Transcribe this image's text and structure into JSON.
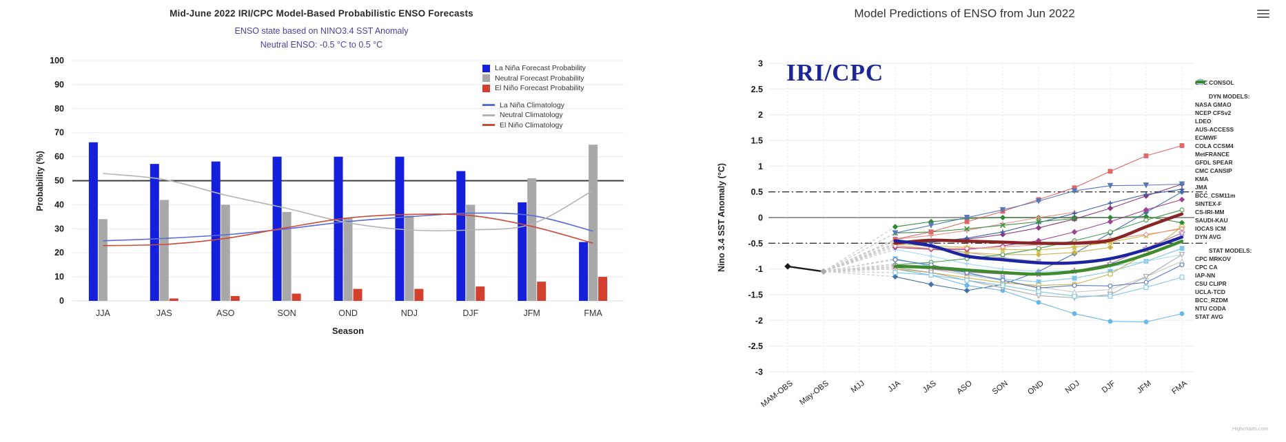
{
  "left_panel": {
    "title": "Mid-June 2022 IRI/CPC Model-Based Probabilistic ENSO Forecasts",
    "subtitle1": "ENSO state based on NINO3.4 SST Anomaly",
    "subtitle2": "Neutral ENSO: -0.5 °C to 0.5 °C"
  },
  "right_panel": {
    "title": "Model Predictions of ENSO from Jun 2022",
    "watermark": "IRI/CPC",
    "credit": "Highcharts.com",
    "menu_icon": "hamburger-icon"
  },
  "chart_data": [
    {
      "type": "bar",
      "title": "Mid-June 2022 IRI/CPC Model-Based Probabilistic ENSO Forecasts",
      "subtitles": [
        "ENSO state based on NINO3.4 SST Anomaly",
        "Neutral ENSO: -0.5 °C to 0.5 °C"
      ],
      "xlabel": "Season",
      "ylabel": "Probability (%)",
      "ylim": [
        0,
        100
      ],
      "ytick_step": 10,
      "grid": true,
      "legend_position": "top-right",
      "reference_line_y": 50,
      "reference_line_color": "#3c3c3c",
      "categories": [
        "JJA",
        "JAS",
        "ASO",
        "SON",
        "OND",
        "NDJ",
        "DJF",
        "JFM",
        "FMA"
      ],
      "bar_series": [
        {
          "name": "La Niña Forecast Probability",
          "color": "#1520dd",
          "values": [
            66,
            57,
            58,
            60,
            60,
            60,
            54,
            41,
            24.5
          ]
        },
        {
          "name": "Neutral Forecast Probability",
          "color": "#a8a8a8",
          "values": [
            34,
            42,
            40,
            37,
            34.5,
            35.5,
            40,
            51,
            65
          ]
        },
        {
          "name": "El Niño Forecast Probability",
          "color": "#d2402e",
          "values": [
            0,
            1,
            2,
            3,
            5,
            5,
            6,
            8,
            10
          ]
        }
      ],
      "line_series": [
        {
          "name": "La Niña Climatology",
          "color": "#5a6bd8",
          "values": [
            25,
            26,
            27.5,
            30,
            33,
            35,
            36.5,
            35.5,
            29
          ]
        },
        {
          "name": "Neutral Climatology",
          "color": "#b3b3b3",
          "values": [
            53,
            50.5,
            44,
            38.5,
            32.5,
            29.5,
            29.5,
            32,
            46
          ]
        },
        {
          "name": "El Niño Climatology",
          "color": "#cc4a38",
          "values": [
            23,
            23.5,
            26,
            30.5,
            34.5,
            36,
            35.5,
            31,
            24
          ]
        }
      ]
    },
    {
      "type": "line",
      "title": "Model Predictions of ENSO from Jun 2022",
      "watermark": "IRI/CPC",
      "ylabel": "Nino 3.4 SST Anomaly (°C)",
      "ylim": [
        -3,
        3
      ],
      "ytick_step": 0.5,
      "zero_line": 0,
      "dashdot_lines": [
        0.5,
        -0.5
      ],
      "categories": [
        "MAM-OBS",
        "May-OBS",
        "MJJ",
        "JJA",
        "JAS",
        "ASO",
        "SON",
        "OND",
        "NDJ",
        "DJF",
        "JFM",
        "FMA"
      ],
      "observation": {
        "name": "OBS",
        "color": "#1a1a1a",
        "values": [
          -0.95,
          -1.05
        ],
        "marker": "diamond"
      },
      "fan_color": "#cbcbcb",
      "model_start_index": 3,
      "legend_sections": [
        {
          "header": null,
          "items": [
            "CPC CONSOL"
          ]
        },
        {
          "header": "DYN MODELS:",
          "items": [
            "NASA GMAO",
            "NCEP CFSv2",
            "LDEO",
            "AUS-ACCESS",
            "ECMWF",
            "COLA CCSM4",
            "MetFRANCE",
            "GFDL SPEAR",
            "CMC CANSIP",
            "KMA",
            "JMA",
            "BCC_CSM11m",
            "SINTEX-F",
            "CS-IRI-MM",
            "SAUDI-KAU",
            "IOCAS ICM",
            "DYN AVG"
          ]
        },
        {
          "header": "STAT MODELS:",
          "items": [
            "CPC MRKOV",
            "CPC CA",
            "IAP-NN",
            "CSU CLIPR",
            "UCLA-TCD",
            "BCC_RZDM",
            "NTU CODA",
            "STAT AVG"
          ]
        }
      ],
      "series": [
        {
          "name": "CPC CONSOL",
          "color": "#1c24a0",
          "marker": "line",
          "filled": true,
          "thick": true,
          "values": [
            -0.45,
            -0.55,
            -0.75,
            -0.82,
            -0.88,
            -0.88,
            -0.8,
            -0.62,
            -0.38
          ]
        },
        {
          "name": "NASA GMAO",
          "color": "#4472a8",
          "marker": "diamond",
          "filled": true,
          "values": [
            -1.15,
            -1.3,
            -1.42,
            -1.3,
            -1.05,
            -0.7,
            -0.3,
            0.1,
            0.5
          ]
        },
        {
          "name": "NCEP CFSv2",
          "color": "#7fc6e8",
          "marker": "square",
          "filled": true,
          "values": [
            -0.8,
            -0.95,
            -1.1,
            -1.2,
            -1.25,
            -1.18,
            -1.05,
            -0.85,
            -0.6
          ]
        },
        {
          "name": "LDEO",
          "color": "#2e8b33",
          "marker": "diamond",
          "filled": true,
          "values": [
            -0.18,
            -0.08,
            -0.02,
            0,
            0,
            0,
            0,
            0.02,
            -0.1
          ]
        },
        {
          "name": "AUS-ACCESS",
          "color": "#cfc04f",
          "marker": "star",
          "filled": true,
          "values": [
            -0.52,
            -0.55,
            -0.58,
            -0.62,
            -0.63,
            -0.58,
            -0.48,
            -0.35,
            -0.2
          ]
        },
        {
          "name": "ECMWF",
          "color": "#ef8b8b",
          "marker": "plus",
          "filled": true,
          "values": [
            -0.42,
            -0.35,
            -0.25,
            -0.12,
            0,
            0.1
          ]
        },
        {
          "name": "COLA CCSM4",
          "color": "#8b3a80",
          "marker": "diamond",
          "filled": true,
          "values": [
            -0.45,
            -0.48,
            -0.42,
            -0.33,
            -0.2,
            -0.03,
            0.18,
            0.42,
            0.65
          ]
        },
        {
          "name": "MetFRANCE",
          "color": "#b8b8b8",
          "marker": "square",
          "filled": true,
          "values": [
            -0.42,
            -0.55,
            -0.68,
            -0.78,
            -0.85
          ]
        },
        {
          "name": "GFDL SPEAR",
          "color": "#3c5fa8",
          "marker": "plus",
          "filled": true,
          "values": [
            -0.5,
            -0.48,
            -0.4,
            -0.28,
            -0.1,
            0.08,
            0.28,
            0.45,
            0.55
          ]
        },
        {
          "name": "CMC CANSIP",
          "color": "#a5d8f0",
          "marker": "plus",
          "filled": true,
          "values": [
            -0.62,
            -0.75,
            -0.9,
            -1,
            -1.05,
            -1.03,
            -0.95,
            -0.85,
            -0.72
          ]
        },
        {
          "name": "KMA",
          "color": "#3f8f3f",
          "marker": "cross",
          "filled": true,
          "values": [
            -0.3,
            -0.28,
            -0.22,
            -0.15,
            -0.08,
            -0.02
          ]
        },
        {
          "name": "JMA",
          "color": "#c9b44c",
          "marker": "diamond",
          "filled": true,
          "values": [
            -0.55,
            -0.62,
            -0.68,
            -0.72,
            -0.72,
            -0.68,
            -0.58
          ]
        },
        {
          "name": "BCC_CSM11m",
          "color": "#dd6866",
          "marker": "square",
          "filled": true,
          "values": [
            -0.42,
            -0.28,
            -0.08,
            0.12,
            0.35,
            0.58,
            0.9,
            1.2,
            1.4
          ]
        },
        {
          "name": "SINTEX-F",
          "color": "#a04090",
          "marker": "diamond",
          "filled": true,
          "values": [
            -0.58,
            -0.62,
            -0.62,
            -0.55,
            -0.45,
            -0.28,
            -0.08,
            0.15,
            0.35
          ]
        },
        {
          "name": "CS-IRI-MM",
          "color": "#c4c4c4",
          "marker": "tri_up",
          "filled": false,
          "values": [
            -0.9,
            -1,
            -1.12,
            -1.22,
            -1.35,
            -1.45,
            -1.4,
            -1.15,
            -0.85
          ]
        },
        {
          "name": "SAUDI-KAU",
          "color": "#5878b8",
          "marker": "tri_down",
          "filled": true,
          "values": [
            -0.3,
            -0.15,
            0,
            0.15,
            0.32,
            0.52,
            0.62,
            0.63,
            0.65
          ]
        },
        {
          "name": "IOCAS ICM",
          "color": "#68b8e8",
          "marker": "circle",
          "filled": true,
          "values": [
            -1,
            -1.12,
            -1.32,
            -1.42,
            -1.65,
            -1.87,
            -2.02,
            -2.03,
            -1.87
          ]
        },
        {
          "name": "DYN AVG",
          "color": "#8a2525",
          "marker": "line",
          "filled": true,
          "thick": true,
          "values": [
            -0.5,
            -0.44,
            -0.46,
            -0.48,
            -0.5,
            -0.5,
            -0.44,
            -0.18,
            0.07
          ]
        },
        {
          "name": "CPC MRKOV",
          "color": "#44a048",
          "marker": "circle",
          "filled": false,
          "values": [
            -0.92,
            -0.87,
            -0.8,
            -0.72,
            -0.6,
            -0.45,
            -0.28,
            -0.05,
            0.15
          ]
        },
        {
          "name": "CPC CA",
          "color": "#c9b44c",
          "marker": "square",
          "filled": false,
          "values": [
            -1,
            -1.07,
            -1.17,
            -1.27,
            -1.32,
            -1.3,
            -1.1,
            -0.7,
            -0.18
          ]
        },
        {
          "name": "IAP-NN",
          "color": "#ee9090",
          "marker": "diamond",
          "filled": false,
          "values": [
            -0.55,
            -0.6,
            -0.6,
            -0.57,
            -0.53,
            -0.48,
            -0.42,
            -0.33,
            -0.22
          ]
        },
        {
          "name": "CSU CLIPR",
          "color": "#aa6fb0",
          "marker": "star",
          "filled": false,
          "values": [
            -0.95,
            -1,
            -1.06,
            -1.1,
            -1.1,
            -1.04,
            -0.9,
            -0.6,
            -0.3
          ]
        },
        {
          "name": "UCLA-TCD",
          "color": "#a8a8a8",
          "marker": "tri_down",
          "filled": false,
          "values": [
            -0.97,
            -1.07,
            -1.22,
            -1.37,
            -1.52,
            -1.56,
            -1.5,
            -1.15,
            -0.72
          ]
        },
        {
          "name": "BCC_RZDM",
          "color": "#5878b8",
          "marker": "circle",
          "filled": false,
          "values": [
            -0.82,
            -0.92,
            -1.07,
            -1.22,
            -1.37,
            -1.32,
            -1.33,
            -1.26,
            -0.92
          ]
        },
        {
          "name": "NTU CODA",
          "color": "#7fc6e8",
          "marker": "square",
          "filled": false,
          "values": [
            -1.07,
            -1.12,
            -1.22,
            -1.32,
            -1.44,
            -1.53,
            -1.53,
            -1.36,
            -1.16
          ]
        },
        {
          "name": "STAT AVG",
          "color": "#3e8a2e",
          "marker": "line",
          "filled": true,
          "thick": true,
          "values": [
            -0.95,
            -0.97,
            -1.02,
            -1.07,
            -1.1,
            -1.05,
            -0.93,
            -0.72,
            -0.46
          ]
        }
      ]
    }
  ]
}
